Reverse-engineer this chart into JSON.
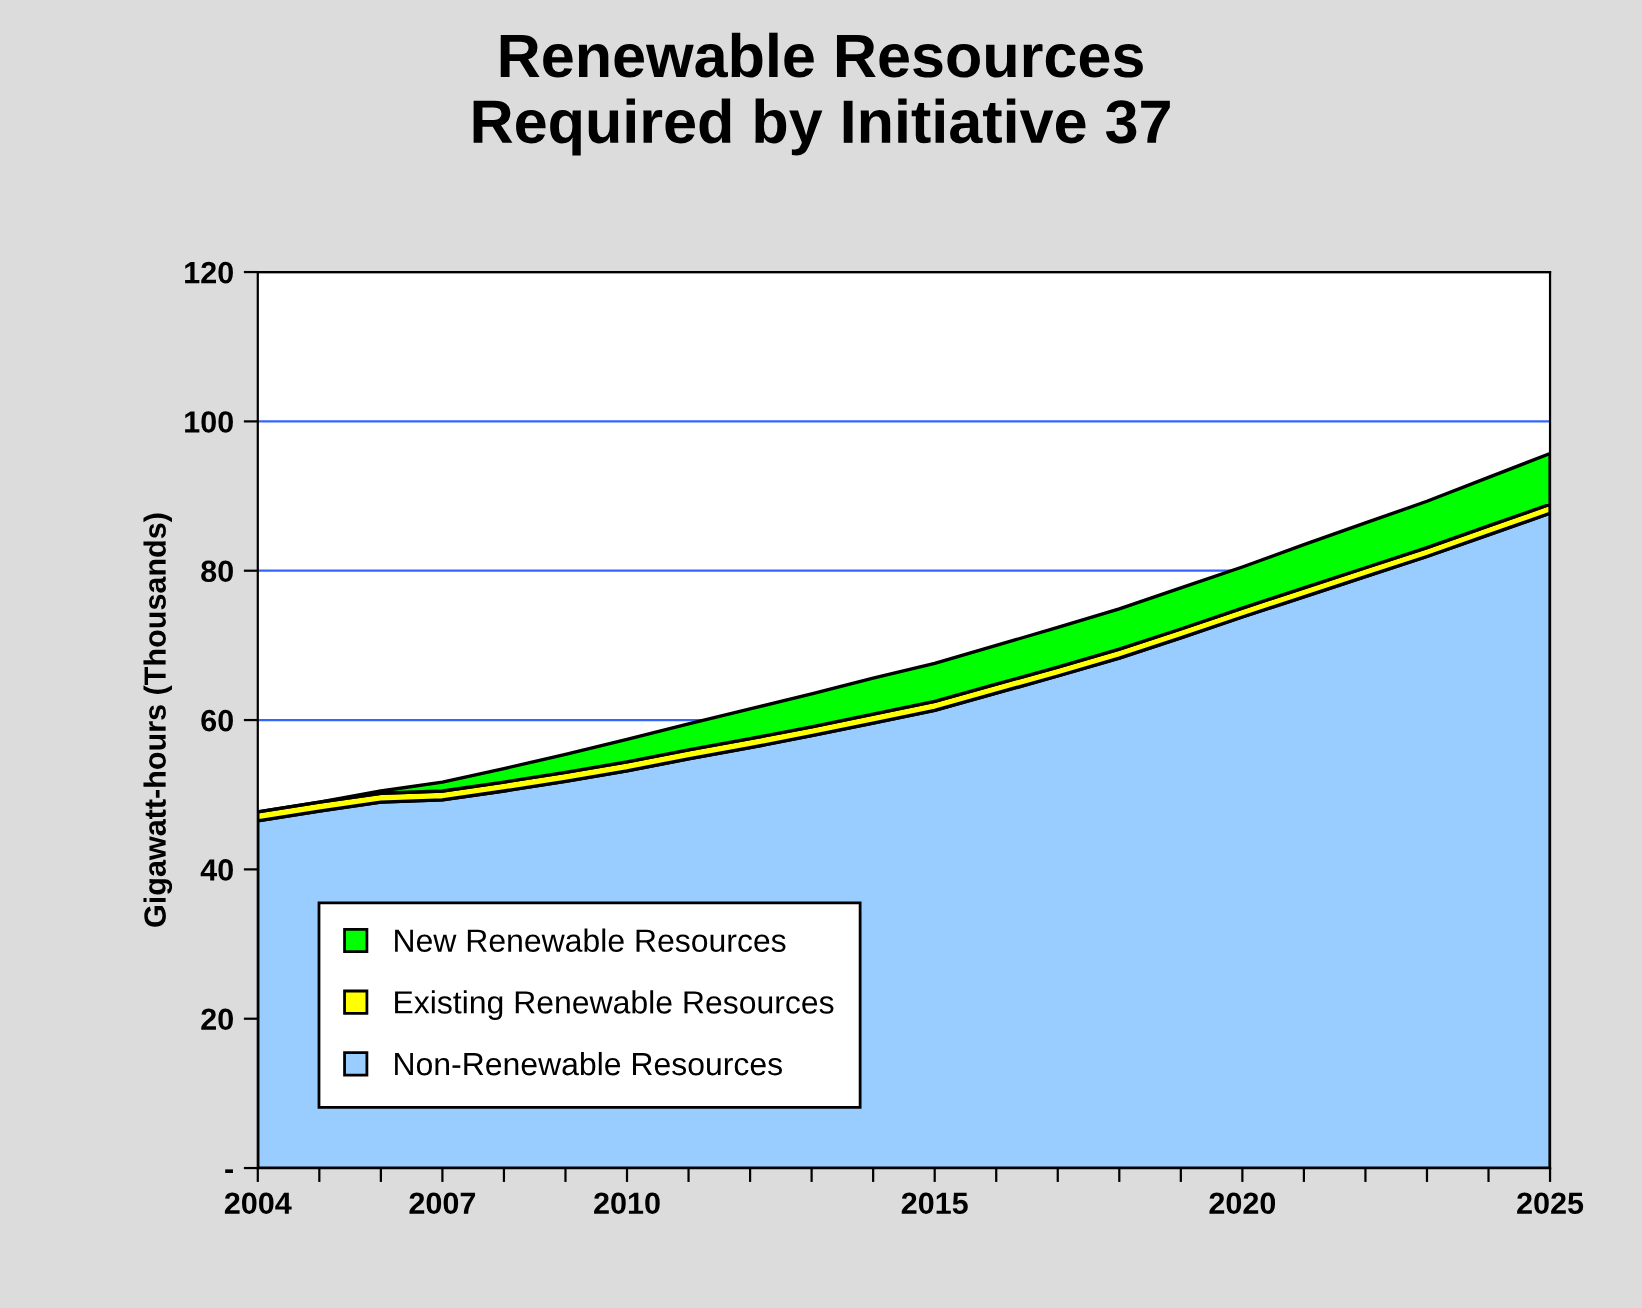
{
  "chart_data": {
    "type": "area",
    "stacked": true,
    "title": "Renewable Resources\nRequired by Initiative 37",
    "ylabel": "Gigawatt-hours (Thousands)",
    "x": [
      2004,
      2005,
      2006,
      2007,
      2008,
      2009,
      2010,
      2011,
      2012,
      2013,
      2014,
      2015,
      2016,
      2017,
      2018,
      2019,
      2020,
      2021,
      2022,
      2023,
      2024,
      2025
    ],
    "series": [
      {
        "name": "Non-Renewable Resources",
        "color": "#99ccff",
        "values": [
          46.5,
          47.8,
          49.0,
          49.3,
          50.5,
          51.8,
          53.2,
          54.8,
          56.3,
          57.9,
          59.6,
          61.3,
          63.6,
          65.9,
          68.3,
          71.0,
          73.8,
          76.5,
          79.2,
          81.9,
          84.8,
          87.7
        ]
      },
      {
        "name": "Existing Renewable Resources",
        "color": "#ffff00",
        "values": [
          1.2,
          1.2,
          1.2,
          1.2,
          1.2,
          1.2,
          1.2,
          1.2,
          1.2,
          1.2,
          1.2,
          1.2,
          1.2,
          1.2,
          1.2,
          1.2,
          1.2,
          1.2,
          1.2,
          1.2,
          1.2,
          1.2
        ]
      },
      {
        "name": "New Renewable Resources",
        "color": "#00ff00",
        "values": [
          0,
          0,
          0.3,
          1.2,
          1.8,
          2.4,
          3.0,
          3.5,
          4.0,
          4.4,
          4.8,
          5.1,
          5.2,
          5.3,
          5.4,
          5.5,
          5.5,
          5.8,
          6.0,
          6.2,
          6.5,
          6.8
        ]
      }
    ],
    "xlim": [
      2004,
      2025
    ],
    "ylim": [
      0,
      120
    ],
    "xticks": [
      2004,
      {
        "value": 2005,
        "label": null
      },
      {
        "value": 2006,
        "label": null
      },
      2007,
      {
        "value": 2008,
        "label": null
      },
      {
        "value": 2009,
        "label": null
      },
      2010,
      {
        "value": 2011,
        "label": null
      },
      {
        "value": 2012,
        "label": null
      },
      {
        "value": 2013,
        "label": null
      },
      {
        "value": 2014,
        "label": null
      },
      2015,
      {
        "value": 2016,
        "label": null
      },
      {
        "value": 2017,
        "label": null
      },
      {
        "value": 2018,
        "label": null
      },
      {
        "value": 2019,
        "label": null
      },
      2020,
      {
        "value": 2021,
        "label": null
      },
      {
        "value": 2022,
        "label": null
      },
      {
        "value": 2023,
        "label": null
      },
      {
        "value": 2024,
        "label": null
      },
      2025
    ],
    "yticks": [
      {
        "value": 0,
        "label": "-"
      },
      20,
      40,
      60,
      80,
      100,
      120
    ],
    "grid": "y",
    "legend": "bottom left"
  }
}
